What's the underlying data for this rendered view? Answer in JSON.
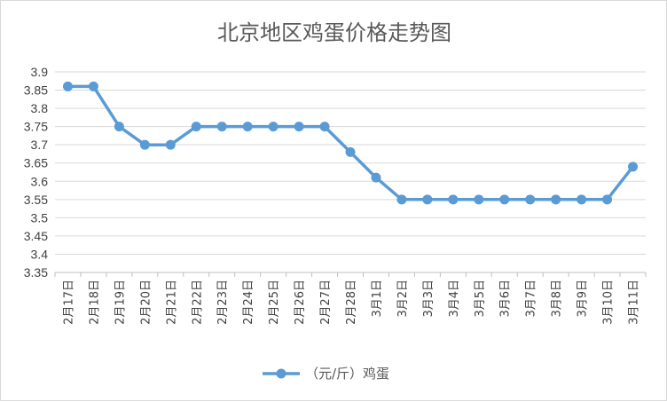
{
  "chart_data": {
    "type": "line",
    "title": "北京地区鸡蛋价格走势图",
    "xlabel": "",
    "ylabel": "",
    "ylim": [
      3.35,
      3.9
    ],
    "ytick_step": 0.05,
    "yticks": [
      "3.9",
      "3.85",
      "3.8",
      "3.75",
      "3.7",
      "3.65",
      "3.6",
      "3.55",
      "3.5",
      "3.45",
      "3.4",
      "3.35"
    ],
    "grid": true,
    "legend_position": "bottom",
    "line_color": "#5B9BD5",
    "categories": [
      "2月17日",
      "2月18日",
      "2月19日",
      "2月20日",
      "2月21日",
      "2月22日",
      "2月23日",
      "2月24日",
      "2月25日",
      "2月26日",
      "2月27日",
      "2月28日",
      "3月1日",
      "3月2日",
      "3月3日",
      "3月4日",
      "3月5日",
      "3月6日",
      "3月7日",
      "3月8日",
      "3月9日",
      "3月10日",
      "3月11日"
    ],
    "series": [
      {
        "name": "（元/斤）鸡蛋",
        "values": [
          3.86,
          3.86,
          3.75,
          3.7,
          3.7,
          3.75,
          3.75,
          3.75,
          3.75,
          3.75,
          3.75,
          3.68,
          3.61,
          3.55,
          3.55,
          3.55,
          3.55,
          3.55,
          3.55,
          3.55,
          3.55,
          3.55,
          3.64
        ]
      }
    ]
  }
}
